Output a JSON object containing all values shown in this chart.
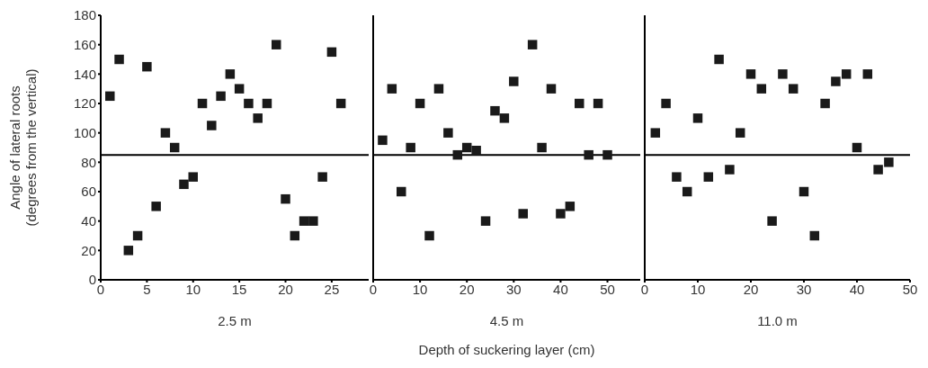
{
  "chart_data": [
    {
      "type": "scatter",
      "ylabel": "Angle of lateral roots\n(degrees from the vertical)",
      "xlabel": "2.5 m",
      "marker": "square",
      "color": "#1a1a1a",
      "grid": false,
      "xlim": [
        0,
        29
      ],
      "xticks": [
        0,
        5,
        10,
        15,
        20,
        25
      ],
      "ylim": [
        0,
        180
      ],
      "yticks": [
        0,
        20,
        40,
        60,
        80,
        100,
        120,
        140,
        160,
        180
      ],
      "ref_lines": [
        {
          "axis": "y",
          "value": 85,
          "color": "#000000"
        }
      ],
      "x": [
        1,
        2,
        3,
        4,
        5,
        6,
        7,
        8,
        9,
        10,
        11,
        12,
        13,
        14,
        15,
        16,
        17,
        18,
        19,
        20,
        21,
        22,
        23,
        24,
        25,
        26
      ],
      "values": [
        125,
        150,
        20,
        30,
        145,
        50,
        100,
        90,
        65,
        70,
        120,
        105,
        125,
        140,
        130,
        120,
        110,
        120,
        160,
        55,
        30,
        40,
        40,
        70,
        155,
        120
      ]
    },
    {
      "type": "scatter",
      "xlabel": "4.5 m",
      "annotations": [
        "Depth of suckering layer (cm)"
      ],
      "marker": "square",
      "color": "#1a1a1a",
      "grid": false,
      "tick_labels": "x",
      "xlim": [
        0,
        57
      ],
      "xticks": [
        0,
        10,
        20,
        30,
        40,
        50
      ],
      "ylim": [
        0,
        180
      ],
      "yticks": [
        0,
        20,
        40,
        60,
        80,
        100,
        120,
        140,
        160,
        180
      ],
      "ref_lines": [
        {
          "axis": "y",
          "value": 85,
          "color": "#000000"
        }
      ],
      "x": [
        2,
        4,
        6,
        8,
        10,
        12,
        14,
        16,
        18,
        20,
        22,
        24,
        26,
        28,
        30,
        32,
        34,
        36,
        38,
        40,
        42,
        44,
        46,
        48,
        50
      ],
      "values": [
        95,
        130,
        60,
        90,
        120,
        30,
        130,
        100,
        85,
        90,
        88,
        40,
        115,
        110,
        135,
        45,
        160,
        90,
        130,
        45,
        50,
        120,
        85,
        120,
        85
      ]
    },
    {
      "type": "scatter",
      "xlabel": "11.0 m",
      "marker": "square",
      "color": "#1a1a1a",
      "grid": false,
      "tick_labels": "x",
      "xlim": [
        0,
        50
      ],
      "xticks": [
        0,
        10,
        20,
        30,
        40,
        50
      ],
      "ylim": [
        0,
        180
      ],
      "yticks": [
        0,
        20,
        40,
        60,
        80,
        100,
        120,
        140,
        160,
        180
      ],
      "ref_lines": [
        {
          "axis": "y",
          "value": 85,
          "color": "#000000"
        }
      ],
      "x": [
        2,
        4,
        6,
        8,
        10,
        12,
        14,
        16,
        18,
        20,
        22,
        24,
        26,
        28,
        30,
        32,
        34,
        36,
        38,
        40,
        42,
        44,
        46
      ],
      "values": [
        100,
        120,
        70,
        60,
        110,
        70,
        150,
        75,
        100,
        140,
        130,
        40,
        140,
        130,
        60,
        30,
        120,
        135,
        140,
        90,
        140,
        75,
        80
      ]
    }
  ]
}
